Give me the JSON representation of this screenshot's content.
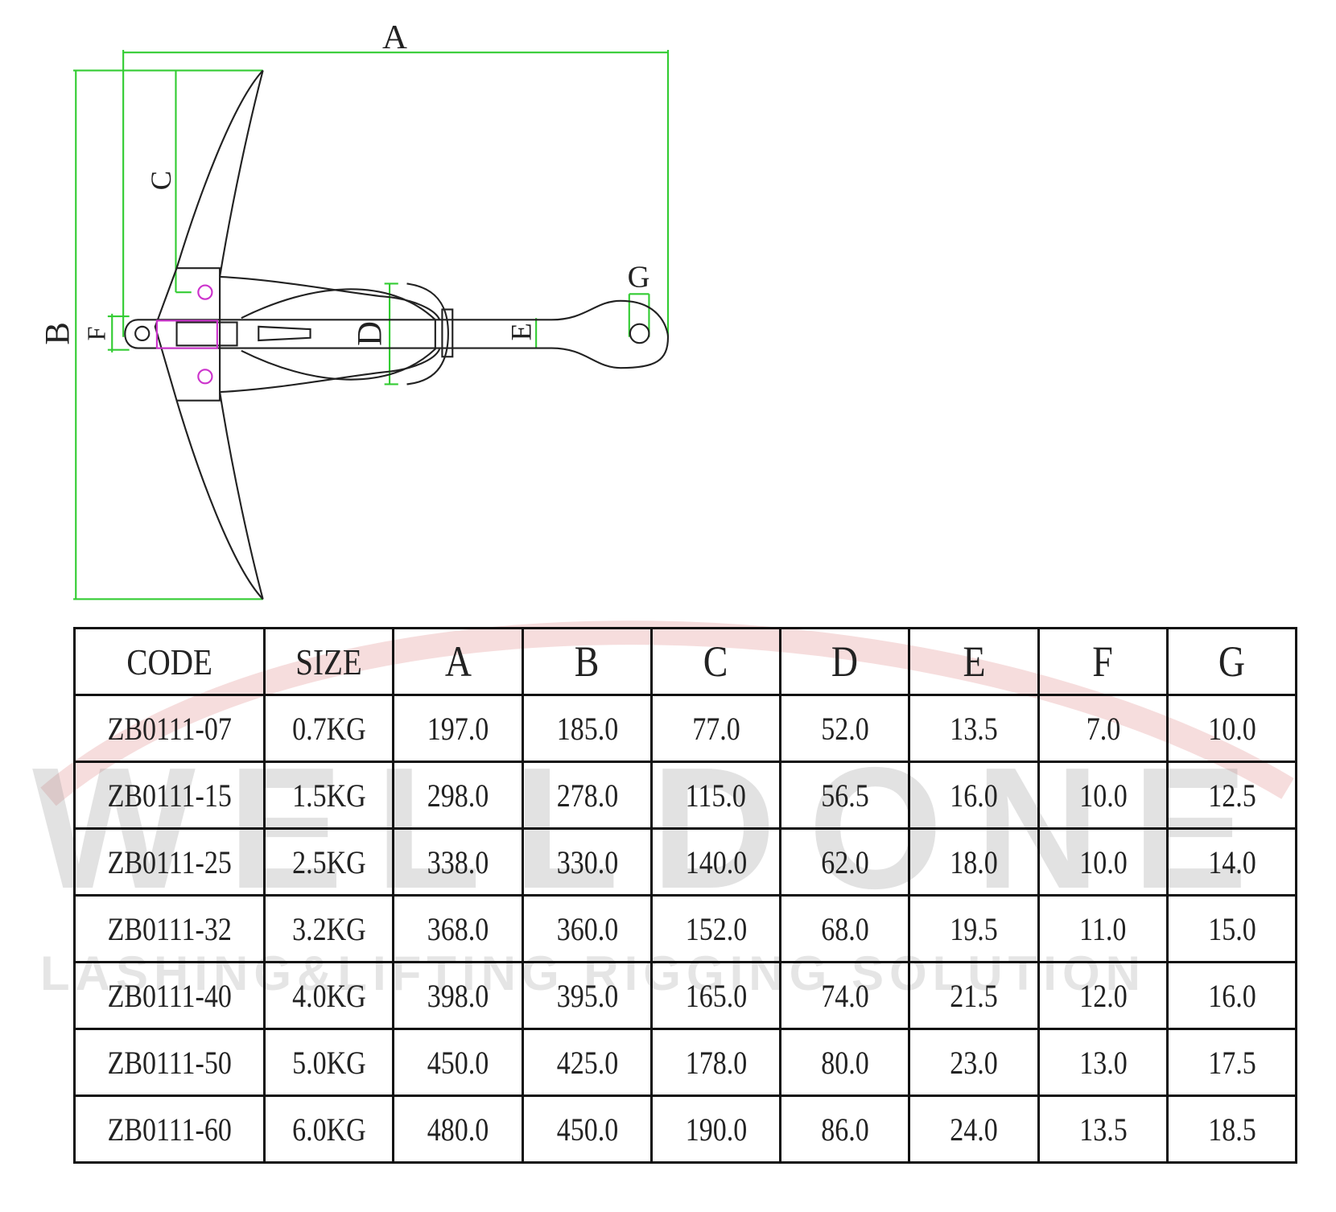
{
  "drawing": {
    "dimension_labels": {
      "A": "A",
      "B": "B",
      "C": "C",
      "D": "D",
      "E": "E",
      "F": "F",
      "G": "G"
    },
    "colors": {
      "dimension": "#33cc33",
      "outline": "#222222",
      "pins": "#cc33cc"
    }
  },
  "watermark": {
    "brand": "WELLDONE",
    "tagline": "LASHING&LIFTING RIGGING SOLUTION"
  },
  "table": {
    "headers": [
      "CODE",
      "SIZE",
      "A",
      "B",
      "C",
      "D",
      "E",
      "F",
      "G"
    ],
    "rows": [
      [
        "ZB0111-07",
        "0.7KG",
        "197.0",
        "185.0",
        "77.0",
        "52.0",
        "13.5",
        "7.0",
        "10.0"
      ],
      [
        "ZB0111-15",
        "1.5KG",
        "298.0",
        "278.0",
        "115.0",
        "56.5",
        "16.0",
        "10.0",
        "12.5"
      ],
      [
        "ZB0111-25",
        "2.5KG",
        "338.0",
        "330.0",
        "140.0",
        "62.0",
        "18.0",
        "10.0",
        "14.0"
      ],
      [
        "ZB0111-32",
        "3.2KG",
        "368.0",
        "360.0",
        "152.0",
        "68.0",
        "19.5",
        "11.0",
        "15.0"
      ],
      [
        "ZB0111-40",
        "4.0KG",
        "398.0",
        "395.0",
        "165.0",
        "74.0",
        "21.5",
        "12.0",
        "16.0"
      ],
      [
        "ZB0111-50",
        "5.0KG",
        "450.0",
        "425.0",
        "178.0",
        "80.0",
        "23.0",
        "13.0",
        "17.5"
      ],
      [
        "ZB0111-60",
        "6.0KG",
        "480.0",
        "450.0",
        "190.0",
        "86.0",
        "24.0",
        "13.5",
        "18.5"
      ]
    ]
  }
}
